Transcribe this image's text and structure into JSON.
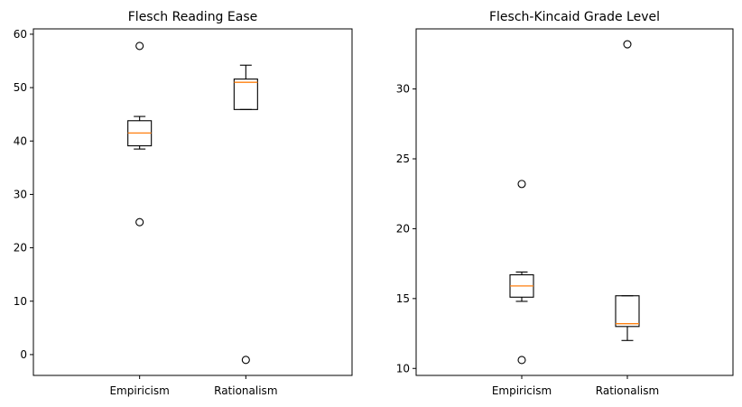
{
  "chart_data": [
    {
      "type": "box",
      "title": "Flesch Reading Ease",
      "categories": [
        "Empiricism",
        "Rationalism"
      ],
      "ylim": [
        -3.9,
        61.0
      ],
      "yticks": [
        0,
        10,
        20,
        30,
        40,
        50,
        60
      ],
      "boxes": [
        {
          "category": "Empiricism",
          "whisker_low": 38.5,
          "q1": 39.1,
          "median": 41.5,
          "q3": 43.8,
          "whisker_high": 44.6,
          "fliers": [
            57.8,
            24.8
          ]
        },
        {
          "category": "Rationalism",
          "whisker_low": 45.9,
          "q1": 45.9,
          "median": 51.0,
          "q3": 51.6,
          "whisker_high": 54.2,
          "fliers": [
            -1.0
          ]
        }
      ]
    },
    {
      "type": "box",
      "title": "Flesch-Kincaid Grade Level",
      "categories": [
        "Empiricism",
        "Rationalism"
      ],
      "ylim": [
        9.5,
        34.3
      ],
      "yticks": [
        10,
        15,
        20,
        25,
        30
      ],
      "boxes": [
        {
          "category": "Empiricism",
          "whisker_low": 14.8,
          "q1": 15.1,
          "median": 15.9,
          "q3": 16.7,
          "whisker_high": 16.9,
          "fliers": [
            23.2,
            10.6
          ]
        },
        {
          "category": "Rationalism",
          "whisker_low": 12.0,
          "q1": 13.0,
          "median": 13.2,
          "q3": 15.2,
          "whisker_high": 15.2,
          "fliers": [
            33.2
          ]
        }
      ]
    }
  ]
}
